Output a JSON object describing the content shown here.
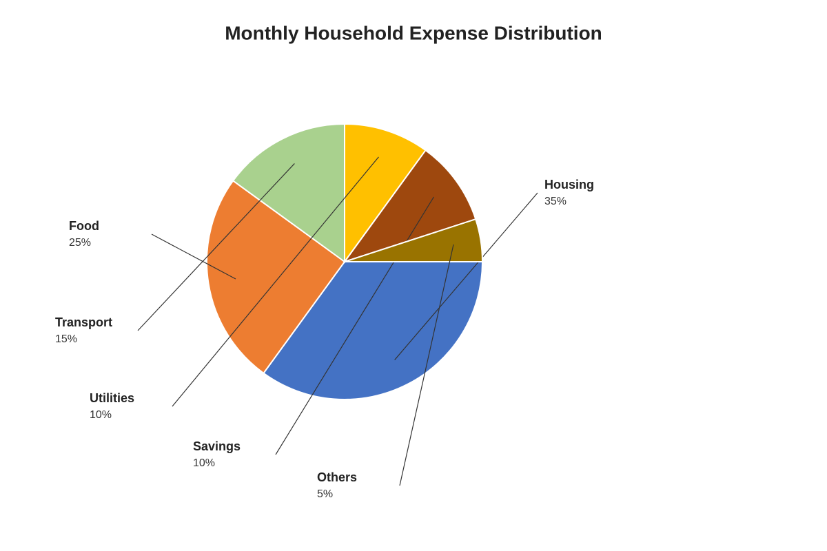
{
  "chart_data": {
    "type": "pie",
    "title": "Monthly Household Expense Distribution",
    "categories": [
      "Housing",
      "Food",
      "Transport",
      "Utilities",
      "Savings",
      "Others"
    ],
    "values": [
      35,
      25,
      15,
      10,
      10,
      5
    ],
    "value_labels": [
      "35%",
      "25%",
      "15%",
      "10%",
      "10%",
      "5%"
    ],
    "colors": [
      "#4472c4",
      "#ed7d31",
      "#a9d18e",
      "#ffc000",
      "#9e480e",
      "#997300"
    ]
  }
}
